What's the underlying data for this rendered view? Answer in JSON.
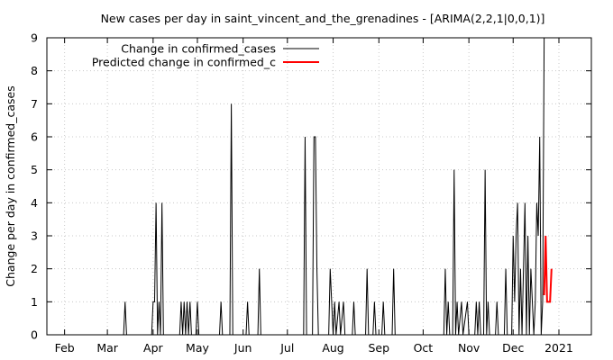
{
  "chart_data": {
    "type": "line",
    "title": "New cases per day in saint_vincent_and_the_grenadines -  [ARIMA(2,2,1|0,0,1)]",
    "ylabel": "Change per day in confirmed_cases",
    "xlabel": "",
    "ylim": [
      0,
      9
    ],
    "xlim": [
      "2020-01-20",
      "2021-01-23"
    ],
    "grid": true,
    "legend_position": "top-left",
    "x_ticks": [
      {
        "date": "2020-02-01",
        "label": "Feb"
      },
      {
        "date": "2020-03-01",
        "label": "Mar"
      },
      {
        "date": "2020-04-01",
        "label": "Apr"
      },
      {
        "date": "2020-05-01",
        "label": "May"
      },
      {
        "date": "2020-06-01",
        "label": "Jun"
      },
      {
        "date": "2020-07-01",
        "label": "Jul"
      },
      {
        "date": "2020-08-01",
        "label": "Aug"
      },
      {
        "date": "2020-09-01",
        "label": "Sep"
      },
      {
        "date": "2020-10-01",
        "label": "Oct"
      },
      {
        "date": "2020-11-01",
        "label": "Nov"
      },
      {
        "date": "2020-12-01",
        "label": "Dec"
      },
      {
        "date": "2021-01-01",
        "label": "2021"
      }
    ],
    "y_ticks": [
      0,
      1,
      2,
      3,
      4,
      5,
      6,
      7,
      8,
      9
    ],
    "series": [
      {
        "name": "Change in confirmed_cases",
        "color": "#000000",
        "points": [
          [
            "2020-03-12",
            0
          ],
          [
            "2020-03-13",
            1
          ],
          [
            "2020-03-14",
            0
          ],
          [
            "2020-03-31",
            0
          ],
          [
            "2020-04-01",
            1
          ],
          [
            "2020-04-02",
            1
          ],
          [
            "2020-04-03",
            4
          ],
          [
            "2020-04-04",
            0
          ],
          [
            "2020-04-05",
            1
          ],
          [
            "2020-04-06",
            0
          ],
          [
            "2020-04-07",
            4
          ],
          [
            "2020-04-08",
            0
          ],
          [
            "2020-04-19",
            0
          ],
          [
            "2020-04-20",
            1
          ],
          [
            "2020-04-21",
            0
          ],
          [
            "2020-04-22",
            1
          ],
          [
            "2020-04-23",
            0
          ],
          [
            "2020-04-24",
            1
          ],
          [
            "2020-04-25",
            0
          ],
          [
            "2020-04-26",
            1
          ],
          [
            "2020-04-27",
            0
          ],
          [
            "2020-04-30",
            0
          ],
          [
            "2020-05-01",
            1
          ],
          [
            "2020-05-02",
            0
          ],
          [
            "2020-05-16",
            0
          ],
          [
            "2020-05-17",
            1
          ],
          [
            "2020-05-18",
            0
          ],
          [
            "2020-05-23",
            0
          ],
          [
            "2020-05-24",
            7
          ],
          [
            "2020-05-25",
            0
          ],
          [
            "2020-06-03",
            0
          ],
          [
            "2020-06-04",
            1
          ],
          [
            "2020-06-05",
            0
          ],
          [
            "2020-06-11",
            0
          ],
          [
            "2020-06-12",
            2
          ],
          [
            "2020-06-13",
            0
          ],
          [
            "2020-07-12",
            0
          ],
          [
            "2020-07-13",
            6
          ],
          [
            "2020-07-14",
            0
          ],
          [
            "2020-07-18",
            0
          ],
          [
            "2020-07-19",
            6
          ],
          [
            "2020-07-20",
            6
          ],
          [
            "2020-07-21",
            2
          ],
          [
            "2020-07-22",
            0
          ],
          [
            "2020-07-29",
            0
          ],
          [
            "2020-07-30",
            2
          ],
          [
            "2020-07-31",
            1
          ],
          [
            "2020-08-01",
            0
          ],
          [
            "2020-08-02",
            1
          ],
          [
            "2020-08-03",
            0
          ],
          [
            "2020-08-05",
            1
          ],
          [
            "2020-08-06",
            0
          ],
          [
            "2020-08-08",
            1
          ],
          [
            "2020-08-09",
            0
          ],
          [
            "2020-08-14",
            0
          ],
          [
            "2020-08-15",
            1
          ],
          [
            "2020-08-16",
            0
          ],
          [
            "2020-08-23",
            0
          ],
          [
            "2020-08-24",
            2
          ],
          [
            "2020-08-25",
            0
          ],
          [
            "2020-08-28",
            0
          ],
          [
            "2020-08-29",
            1
          ],
          [
            "2020-08-30",
            0
          ],
          [
            "2020-09-03",
            0
          ],
          [
            "2020-09-04",
            1
          ],
          [
            "2020-09-05",
            0
          ],
          [
            "2020-09-10",
            0
          ],
          [
            "2020-09-11",
            2
          ],
          [
            "2020-09-12",
            0
          ],
          [
            "2020-10-15",
            0
          ],
          [
            "2020-10-16",
            2
          ],
          [
            "2020-10-17",
            0
          ],
          [
            "2020-10-18",
            1
          ],
          [
            "2020-10-19",
            0
          ],
          [
            "2020-10-21",
            0
          ],
          [
            "2020-10-22",
            5
          ],
          [
            "2020-10-23",
            0
          ],
          [
            "2020-10-24",
            1
          ],
          [
            "2020-10-25",
            0
          ],
          [
            "2020-10-27",
            1
          ],
          [
            "2020-10-28",
            0
          ],
          [
            "2020-10-31",
            1
          ],
          [
            "2020-11-01",
            0
          ],
          [
            "2020-11-05",
            0
          ],
          [
            "2020-11-06",
            1
          ],
          [
            "2020-11-07",
            0
          ],
          [
            "2020-11-08",
            1
          ],
          [
            "2020-11-09",
            0
          ],
          [
            "2020-11-11",
            0
          ],
          [
            "2020-11-12",
            5
          ],
          [
            "2020-11-13",
            0
          ],
          [
            "2020-11-14",
            1
          ],
          [
            "2020-11-15",
            0
          ],
          [
            "2020-11-19",
            0
          ],
          [
            "2020-11-20",
            1
          ],
          [
            "2020-11-21",
            0
          ],
          [
            "2020-11-25",
            0
          ],
          [
            "2020-11-26",
            2
          ],
          [
            "2020-11-27",
            0
          ],
          [
            "2020-11-30",
            0
          ],
          [
            "2020-12-01",
            3
          ],
          [
            "2020-12-02",
            1
          ],
          [
            "2020-12-03",
            3
          ],
          [
            "2020-12-04",
            4
          ],
          [
            "2020-12-05",
            0
          ],
          [
            "2020-12-06",
            2
          ],
          [
            "2020-12-07",
            0
          ],
          [
            "2020-12-08",
            2
          ],
          [
            "2020-12-09",
            4
          ],
          [
            "2020-12-10",
            0
          ],
          [
            "2020-12-11",
            3
          ],
          [
            "2020-12-12",
            0
          ],
          [
            "2020-12-13",
            2
          ],
          [
            "2020-12-14",
            1
          ],
          [
            "2020-12-15",
            0
          ],
          [
            "2020-12-16",
            1
          ],
          [
            "2020-12-17",
            4
          ],
          [
            "2020-12-18",
            3
          ],
          [
            "2020-12-19",
            6
          ],
          [
            "2020-12-20",
            0
          ],
          [
            "2020-12-21",
            1
          ],
          [
            "2020-12-22",
            9
          ]
        ]
      },
      {
        "name": "Predicted change in confirmed_c",
        "color": "#ff0000",
        "points": [
          [
            "2020-12-22",
            1.2
          ],
          [
            "2020-12-23",
            3
          ],
          [
            "2020-12-24",
            1
          ],
          [
            "2020-12-25",
            1
          ],
          [
            "2020-12-26",
            1
          ],
          [
            "2020-12-27",
            2
          ]
        ]
      }
    ]
  }
}
